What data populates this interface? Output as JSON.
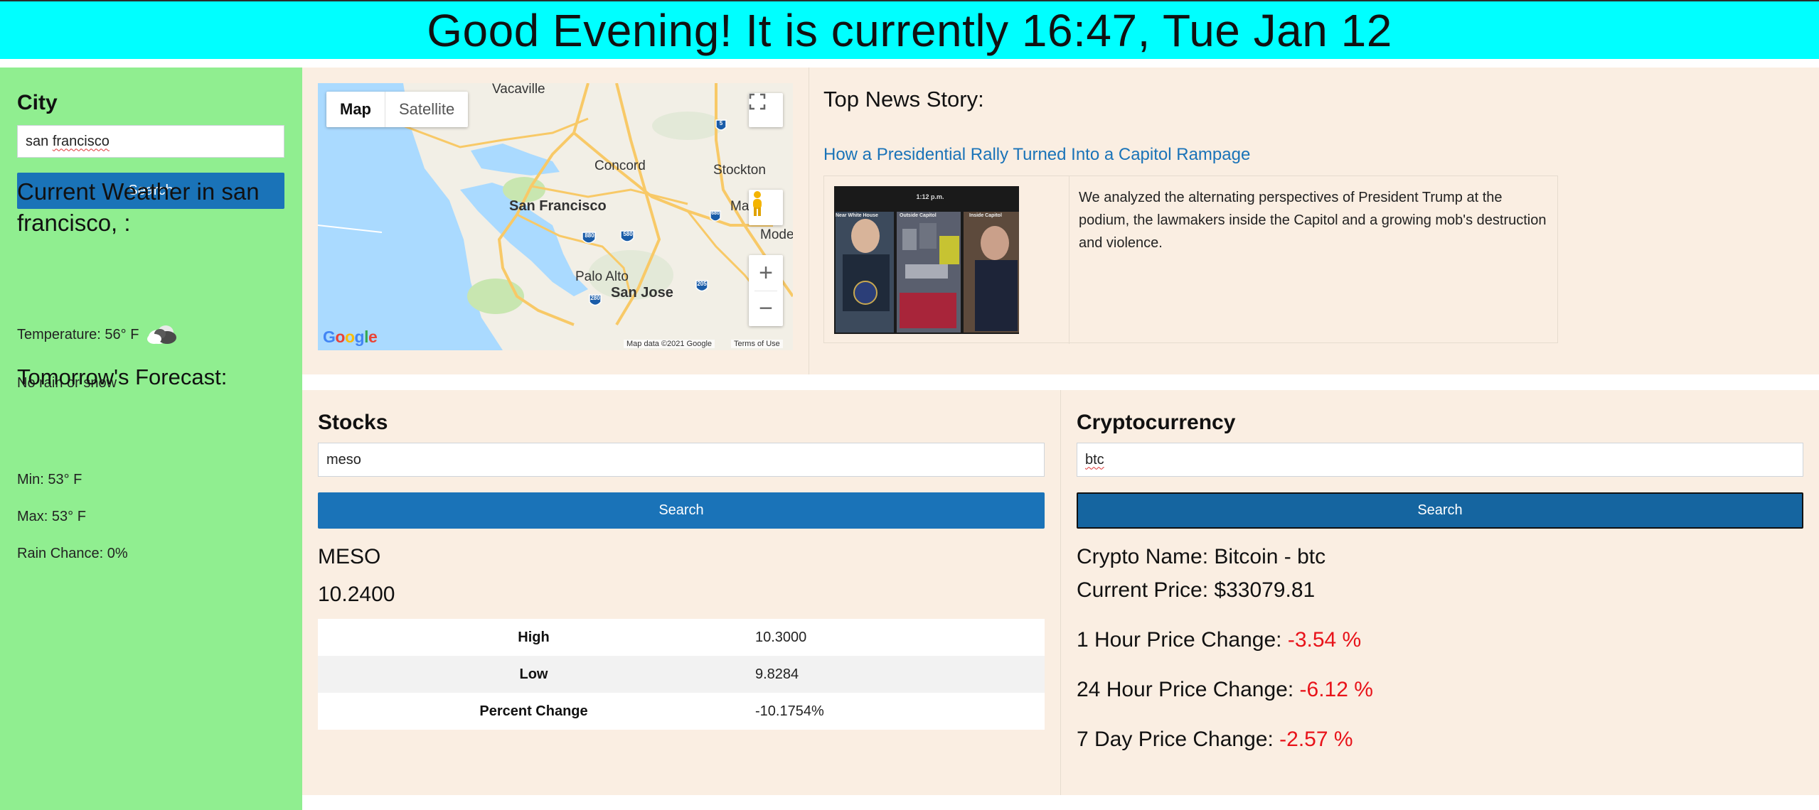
{
  "header": {
    "greeting": "Good Evening! It is currently 16:47, Tue Jan 12"
  },
  "sidebar": {
    "city_label": "City",
    "city_input_value_part1": "san ",
    "city_input_value_part2": "francisco",
    "search_label": "Search",
    "weather_title": "Current Weather in san francisco, :",
    "temperature": "Temperature: 56° F",
    "weather_icon": "cloud-icon",
    "precip": "No rain or snow",
    "forecast_title": "Tomorrow's Forecast:",
    "min": "Min: 53° F",
    "max": "Max: 53° F",
    "rain_chance": "Rain Chance: 0%"
  },
  "map": {
    "tab_map": "Map",
    "tab_satellite": "Satellite",
    "labels": {
      "vacaville": "Vacaville",
      "concord": "Concord",
      "stockton": "Stockton",
      "san_francisco": "San Francisco",
      "palo_alto": "Palo Alto",
      "san_jose": "San Jose",
      "manteca": "Man",
      "modesto": "Mode"
    },
    "shields": {
      "s680": "680",
      "s580": "580",
      "s880": "880",
      "s205": "205",
      "s280": "280",
      "s5": "5"
    },
    "logo": "Google",
    "map_data": "Map data ©2021 Google",
    "terms": "Terms of Use",
    "colors": {
      "water": "#aadaff",
      "land": "#f2efe6",
      "highway": "#f8c967",
      "green": "#c8e6b0"
    }
  },
  "news": {
    "heading": "Top News Story:",
    "link": "How a Presidential Rally Turned Into a Capitol Rampage",
    "image_labels": {
      "time": "1:12 p.m.",
      "left": "Near White House",
      "mid": "Outside Capitol",
      "right": "Inside Capitol"
    },
    "description": "We analyzed the alternating perspectives of President Trump at the podium, the lawmakers inside the Capitol and a growing mob's destruction and violence."
  },
  "stocks": {
    "title": "Stocks",
    "input_value": "meso",
    "search_label": "Search",
    "ticker": "MESO",
    "price": "10.2400",
    "rows": [
      {
        "label": "High",
        "value": "10.3000"
      },
      {
        "label": "Low",
        "value": "9.8284"
      },
      {
        "label": "Percent Change",
        "value": "-10.1754%"
      }
    ]
  },
  "crypto": {
    "title": "Cryptocurrency",
    "input_value": "btc",
    "search_label": "Search",
    "name": "Crypto Name: Bitcoin - btc",
    "current_price": "Current Price: $33079.81",
    "changes": [
      {
        "label": "1 Hour Price Change: ",
        "value": "-3.54 %"
      },
      {
        "label": "24 Hour Price Change: ",
        "value": "-6.12 %"
      },
      {
        "label": "7 Day Price Change: ",
        "value": "-2.57 %"
      }
    ],
    "negative_color": "#e8131a"
  }
}
